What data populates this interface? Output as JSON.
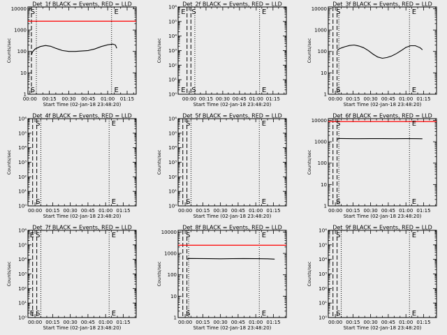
{
  "chart_data": [
    {
      "type": "line",
      "title": "Det_1f BLACK = Events, RED = LLD",
      "xlabel": "Start Time (02-Jan-18 23:48:20)",
      "ylabel": "Counts/sec",
      "yscale": "log",
      "ylim": [
        1,
        12000
      ],
      "ytick_labels": [
        "1",
        "10",
        "100",
        "1000",
        "10000"
      ],
      "ytick_values": [
        1,
        10,
        100,
        1000,
        10000
      ],
      "xlim": [
        -1.5,
        82
      ],
      "xtick_labels": [
        "00:00",
        "00:15",
        "00:30",
        "00:45",
        "01:00",
        "01:15"
      ],
      "xtick_values": [
        0,
        15,
        30,
        45,
        60,
        75
      ],
      "markers": [
        {
          "label": "S",
          "x": 0
        },
        {
          "label": "E",
          "x": 64.5
        }
      ],
      "dashed_x": [
        -1.5,
        1.2
      ],
      "dotted_x": [
        5,
        63
      ],
      "series": [
        {
          "color": "#000000",
          "x": [
            1.2,
            2,
            4,
            8,
            12,
            16,
            20,
            25,
            30,
            35,
            40,
            45,
            50,
            55,
            60,
            64,
            66,
            67
          ],
          "y": [
            70,
            95,
            130,
            170,
            190,
            175,
            140,
            110,
            100,
            100,
            105,
            110,
            130,
            170,
            205,
            220,
            200,
            140
          ]
        },
        {
          "color": "#ff0000",
          "x": [
            -1.5,
            82
          ],
          "y": [
            2600,
            2600
          ]
        }
      ]
    },
    {
      "type": "line",
      "title": "Det_2f BLACK = Events, RED = LLD",
      "xlabel": "Start Time (02-Jan-18 23:48:20)",
      "ylabel": "Counts/sec",
      "yscale": "log",
      "ylim": [
        1,
        1000000
      ],
      "ytick_labels": [
        "10⁰",
        "10¹",
        "10²",
        "10³",
        "10⁴",
        "10⁵",
        "10⁶"
      ],
      "ytick_values": [
        1,
        10,
        100,
        1000,
        10000,
        100000,
        1000000
      ],
      "xlim": [
        -10,
        87
      ],
      "xtick_labels": [
        "00:00",
        "00:15",
        "00:30",
        "00:45",
        "01:00",
        "01:15"
      ],
      "xtick_values": [
        0,
        15,
        30,
        45,
        60,
        75
      ],
      "markers": [
        {
          "label": "E",
          "x": -8
        },
        {
          "label": "S",
          "x": 1.5
        },
        {
          "label": "E",
          "x": 64.5
        }
      ],
      "dashed_x": [
        -2,
        1.5
      ],
      "dotted_x": [
        5,
        63
      ],
      "series": []
    },
    {
      "type": "line",
      "title": "Det_3f BLACK = Events, RED = LLD",
      "xlabel": "Start Time (02-Jan-18 23:48:20)",
      "ylabel": "Counts/sec",
      "yscale": "log",
      "ylim": [
        1,
        12000
      ],
      "ytick_labels": [
        "1",
        "10",
        "100",
        "1000",
        "10000"
      ],
      "ytick_values": [
        1,
        10,
        100,
        1000,
        10000
      ],
      "xlim": [
        -6,
        86
      ],
      "xtick_labels": [
        "00:00",
        "00:15",
        "00:30",
        "00:45",
        "01:00",
        "01:15"
      ],
      "xtick_values": [
        0,
        15,
        30,
        45,
        60,
        75
      ],
      "markers": [
        {
          "label": "S",
          "x": 0
        },
        {
          "label": "E",
          "x": 64.5
        }
      ],
      "dashed_x": [
        -2,
        1.5
      ],
      "dotted_x": [
        3,
        63
      ],
      "series": [
        {
          "color": "#000000",
          "x": [
            1.5,
            3,
            5,
            8,
            12,
            16,
            20,
            24,
            28,
            32,
            36,
            40,
            44,
            48,
            52,
            56,
            60,
            64,
            68,
            72,
            74
          ],
          "y": [
            110,
            130,
            145,
            165,
            190,
            200,
            180,
            150,
            110,
            75,
            55,
            48,
            52,
            62,
            80,
            110,
            155,
            185,
            185,
            150,
            120
          ]
        }
      ]
    },
    {
      "type": "line",
      "title": "Det_4f BLACK = Events, RED = LLD",
      "xlabel": "Start Time (02-Jan-18 23:48:20)",
      "ylabel": "Counts/sec",
      "yscale": "log",
      "ylim": [
        1,
        1000000
      ],
      "ytick_labels": [
        "10⁰",
        "10¹",
        "10²",
        "10³",
        "10⁴",
        "10⁵",
        "10⁶"
      ],
      "ytick_values": [
        1,
        10,
        100,
        1000,
        10000,
        100000,
        1000000
      ],
      "xlim": [
        -6,
        86
      ],
      "xtick_labels": [
        "00:00",
        "00:15",
        "00:30",
        "00:45",
        "01:00",
        "01:15"
      ],
      "xtick_values": [
        0,
        15,
        30,
        45,
        60,
        75
      ],
      "markers": [
        {
          "label": "S",
          "x": 0
        },
        {
          "label": "E",
          "x": 64.5
        }
      ],
      "dashed_x": [
        -2,
        1.5
      ],
      "dotted_x": [
        5,
        63
      ],
      "series": []
    },
    {
      "type": "line",
      "title": "Det_5f BLACK = Events, RED = LLD",
      "xlabel": "Start Time (02-Jan-18 23:48:20)",
      "ylabel": "Counts/sec",
      "yscale": "log",
      "ylim": [
        1,
        1000000
      ],
      "ytick_labels": [
        "10⁰",
        "10¹",
        "10²",
        "10³",
        "10⁴",
        "10⁵",
        "10⁶"
      ],
      "ytick_values": [
        1,
        10,
        100,
        1000,
        10000,
        100000,
        1000000
      ],
      "xlim": [
        -6,
        86
      ],
      "xtick_labels": [
        "00:00",
        "00:15",
        "00:30",
        "00:45",
        "01:00",
        "01:15"
      ],
      "xtick_values": [
        0,
        15,
        30,
        45,
        60,
        75
      ],
      "markers": [
        {
          "label": "S",
          "x": 0
        },
        {
          "label": "E",
          "x": 64.5
        }
      ],
      "dashed_x": [
        -2,
        1.5
      ],
      "dotted_x": [
        5,
        63
      ],
      "series": []
    },
    {
      "type": "line",
      "title": "Det_6f BLACK = Events, RED = LLD",
      "xlabel": "Start Time (02-Jan-18 23:48:20)",
      "ylabel": "Counts/sec",
      "yscale": "log",
      "ylim": [
        1,
        12000
      ],
      "ytick_labels": [
        "1",
        "10",
        "100",
        "1000",
        "10000"
      ],
      "ytick_values": [
        1,
        10,
        100,
        1000,
        10000
      ],
      "xlim": [
        -6,
        86
      ],
      "xtick_labels": [
        "00:00",
        "00:15",
        "00:30",
        "00:45",
        "01:00",
        "01:15"
      ],
      "xtick_values": [
        0,
        15,
        30,
        45,
        60,
        75
      ],
      "markers": [
        {
          "label": "S",
          "x": 0
        },
        {
          "label": "E",
          "x": 64.5
        }
      ],
      "dashed_x": [
        -2,
        1.5
      ],
      "dotted_x": [
        3,
        63
      ],
      "series": [
        {
          "color": "#000000",
          "x": [
            1.5,
            3,
            10,
            20,
            30,
            40,
            50,
            60,
            70,
            74
          ],
          "y": [
            1300,
            1420,
            1400,
            1390,
            1400,
            1395,
            1390,
            1395,
            1390,
            1380
          ]
        },
        {
          "color": "#ff0000",
          "x": [
            -6,
            86
          ],
          "y": [
            8800,
            8800
          ]
        }
      ]
    },
    {
      "type": "line",
      "title": "Det_7f BLACK = Events, RED = LLD",
      "xlabel": "Start Time (02-Jan-18 23:48:20)",
      "ylabel": "Counts/sec",
      "yscale": "log",
      "ylim": [
        1,
        1000000
      ],
      "ytick_labels": [
        "10⁰",
        "10¹",
        "10²",
        "10³",
        "10⁴",
        "10⁵",
        "10⁶"
      ],
      "ytick_values": [
        1,
        10,
        100,
        1000,
        10000,
        100000,
        1000000
      ],
      "xlim": [
        -6,
        86
      ],
      "xtick_labels": [
        "00:00",
        "00:15",
        "00:30",
        "00:45",
        "01:00",
        "01:15"
      ],
      "xtick_values": [
        0,
        15,
        30,
        45,
        60,
        75
      ],
      "markers": [
        {
          "label": "E",
          "x": -5
        },
        {
          "label": "S",
          "x": 0
        },
        {
          "label": "E",
          "x": 64.5
        }
      ],
      "dashed_x": [
        -2,
        1.5
      ],
      "dotted_x": [
        5,
        63
      ],
      "series": []
    },
    {
      "type": "line",
      "title": "Det_8f BLACK = Events, RED = LLD",
      "xlabel": "Start Time (02-Jan-18 23:48:20)",
      "ylabel": "Counts/sec",
      "yscale": "log",
      "ylim": [
        1,
        12000
      ],
      "ytick_labels": [
        "1",
        "10",
        "100",
        "1000",
        "10000"
      ],
      "ytick_values": [
        1,
        10,
        100,
        1000,
        10000
      ],
      "xlim": [
        -6,
        86
      ],
      "xtick_labels": [
        "00:00",
        "00:15",
        "00:30",
        "00:45",
        "01:00",
        "01:15"
      ],
      "xtick_values": [
        0,
        15,
        30,
        45,
        60,
        75
      ],
      "markers": [
        {
          "label": "S",
          "x": 0
        },
        {
          "label": "E",
          "x": 64.5
        }
      ],
      "dashed_x": [
        -2,
        1.5
      ],
      "dotted_x": [
        3,
        63
      ],
      "series": [
        {
          "color": "#000000",
          "x": [
            1.5,
            3,
            10,
            20,
            30,
            40,
            50,
            60,
            70,
            76
          ],
          "y": [
            520,
            580,
            575,
            570,
            560,
            570,
            575,
            570,
            560,
            540
          ]
        },
        {
          "color": "#ff0000",
          "x": [
            -6,
            86
          ],
          "y": [
            2400,
            2400
          ]
        }
      ]
    },
    {
      "type": "line",
      "title": "Det_9f BLACK = Events, RED = LLD",
      "xlabel": "Start Time (02-Jan-18 23:48:20)",
      "ylabel": "Counts/sec",
      "yscale": "log",
      "ylim": [
        1,
        1000000
      ],
      "ytick_labels": [
        "10⁰",
        "10¹",
        "10²",
        "10³",
        "10⁴",
        "10⁵",
        "10⁶"
      ],
      "ytick_values": [
        1,
        10,
        100,
        1000,
        10000,
        100000,
        1000000
      ],
      "xlim": [
        -6,
        86
      ],
      "xtick_labels": [
        "00:00",
        "00:15",
        "00:30",
        "00:45",
        "01:00",
        "01:15"
      ],
      "xtick_values": [
        0,
        15,
        30,
        45,
        60,
        75
      ],
      "markers": [
        {
          "label": "S",
          "x": 0
        },
        {
          "label": "E",
          "x": 64.5
        }
      ],
      "dashed_x": [
        -2,
        1.5
      ],
      "dotted_x": [
        5,
        63
      ],
      "series": []
    }
  ]
}
